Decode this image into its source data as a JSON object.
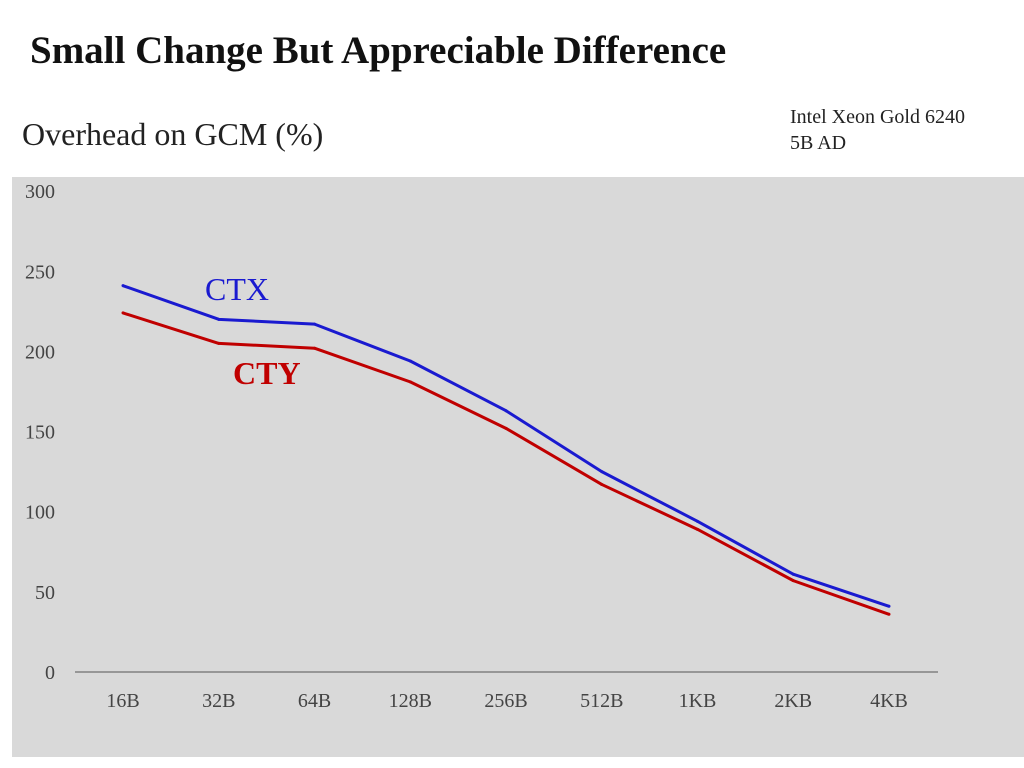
{
  "slide": {
    "title": "Small Change But Appreciable Difference",
    "hardware_note": {
      "line1": "Intel Xeon Gold 6240",
      "line2": "5B AD"
    }
  },
  "chart_data": {
    "type": "line",
    "title": "Overhead on GCM (%)",
    "xlabel": "",
    "ylabel": "",
    "categories": [
      "16B",
      "32B",
      "64B",
      "128B",
      "256B",
      "512B",
      "1KB",
      "2KB",
      "4KB"
    ],
    "ylim": [
      0,
      300
    ],
    "yticks": [
      0,
      50,
      100,
      150,
      200,
      250,
      300
    ],
    "grid": false,
    "legend": "inline labels",
    "series": [
      {
        "name": "CTX",
        "color": "#1a1ad0",
        "values": [
          241,
          220,
          217,
          194,
          163,
          125,
          94,
          61,
          41
        ]
      },
      {
        "name": "CTY",
        "color": "#c00000",
        "values": [
          224,
          205,
          202,
          181,
          152,
          117,
          89,
          57,
          36
        ]
      }
    ]
  }
}
